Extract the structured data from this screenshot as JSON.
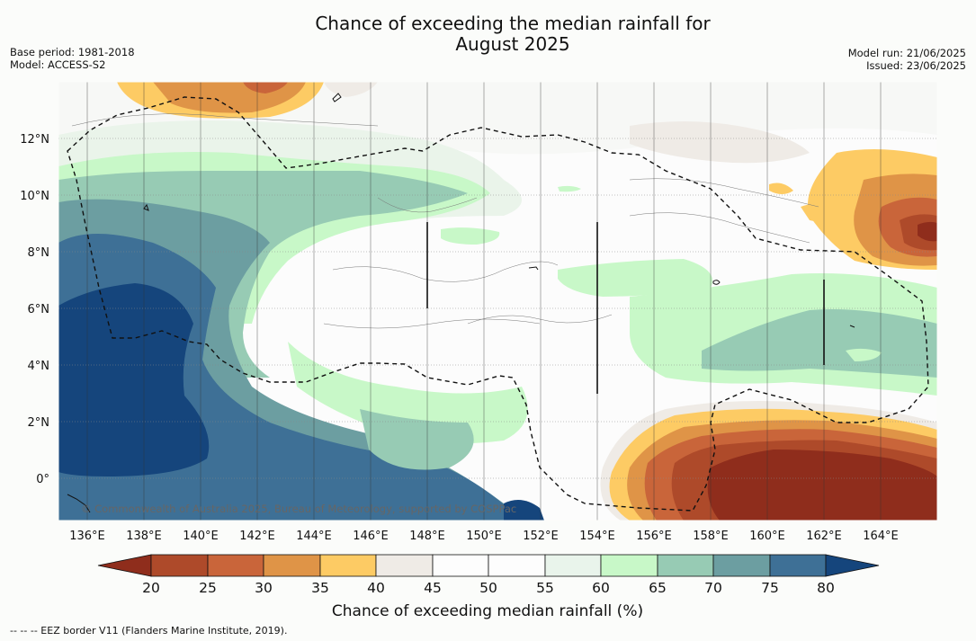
{
  "header": {
    "title_line1": "Chance of exceeding the median rainfall for",
    "title_line2": "August 2025",
    "base_period": "Base period: 1981-2018",
    "model": "Model: ACCESS-S2",
    "model_run": "Model run: 21/06/2025",
    "issued": "Issued: 23/06/2025"
  },
  "map": {
    "lon_ticks": [
      "136°E",
      "138°E",
      "140°E",
      "142°E",
      "144°E",
      "146°E",
      "148°E",
      "150°E",
      "152°E",
      "154°E",
      "156°E",
      "158°E",
      "160°E",
      "162°E",
      "164°E"
    ],
    "lat_ticks": [
      "12°N",
      "10°N",
      "8°N",
      "6°N",
      "4°N",
      "2°N",
      "0°"
    ],
    "copyright": "© Commonwealth of Australia 2025, Bureau of Meteorology, supported by COSPPac"
  },
  "legend": {
    "title": "Chance of exceeding median rainfall (%)",
    "labels": [
      "20",
      "25",
      "30",
      "35",
      "40",
      "45",
      "50",
      "55",
      "60",
      "65",
      "70",
      "75",
      "80"
    ],
    "colors": [
      "#8f2d1c",
      "#ae4a2a",
      "#c9653a",
      "#df9447",
      "#fdcb64",
      "#efebe6",
      "#fdfdfd",
      "#fdfdfd",
      "#e9f4eb",
      "#c8f8c8",
      "#97cbb4",
      "#6c9ea1",
      "#3e7096",
      "#15457c"
    ]
  },
  "footnote": "-- -- -- EEZ border V11 (Flanders Marine Institute, 2019)."
}
